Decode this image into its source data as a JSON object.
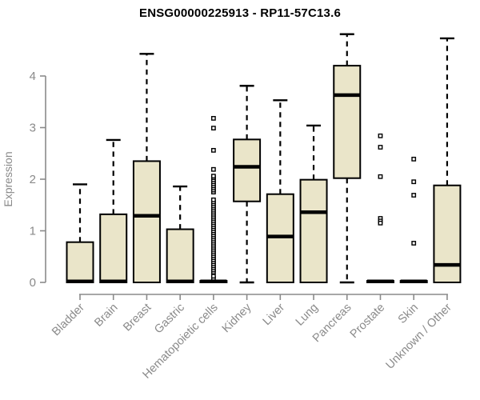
{
  "title": "ENSG00000225913 - RP11-57C13.6",
  "colors": {
    "box_fill": "#EAE5C9",
    "box_stroke": "#000000",
    "median": "#000000",
    "whisker": "#000000",
    "axis": "#8a8a8a",
    "tick_label": "#8a8a8a",
    "title": "#000000",
    "outlier_fill": "#ffffff",
    "background": "#ffffff"
  },
  "chart_data": {
    "type": "boxplot",
    "title": "ENSG00000225913 - RP11-57C13.6",
    "xlabel": "",
    "ylabel": "Expression",
    "ylim": [
      0,
      4.9
    ],
    "yticks": [
      0,
      1,
      2,
      3,
      4
    ],
    "grid": false,
    "legend": "none",
    "categories": [
      "Bladder",
      "Brain",
      "Breast",
      "Gastric",
      "Hematopoietic cells",
      "Kidney",
      "Liver",
      "Lung",
      "Pancreas",
      "Prostate",
      "Skin",
      "Unknown / Other"
    ],
    "series": [
      {
        "name": "Bladder",
        "low": 0,
        "q1": 0,
        "median": 0.02,
        "q3": 0.78,
        "high": 1.9,
        "outliers": []
      },
      {
        "name": "Brain",
        "low": 0,
        "q1": 0,
        "median": 0.02,
        "q3": 1.32,
        "high": 2.76,
        "outliers": []
      },
      {
        "name": "Breast",
        "low": 0,
        "q1": 0,
        "median": 1.29,
        "q3": 2.35,
        "high": 4.43,
        "outliers": []
      },
      {
        "name": "Gastric",
        "low": 0,
        "q1": 0,
        "median": 0.02,
        "q3": 1.03,
        "high": 1.86,
        "outliers": []
      },
      {
        "name": "Hematopoietic cells",
        "low": 0,
        "q1": 0,
        "median": 0.02,
        "q3": 0.03,
        "high": 0.03,
        "outliers": [
          0.08,
          0.12,
          0.2,
          0.24,
          0.28,
          0.32,
          0.36,
          0.4,
          0.44,
          0.48,
          0.52,
          0.56,
          0.6,
          0.64,
          0.68,
          0.72,
          0.76,
          0.8,
          0.84,
          0.88,
          0.92,
          0.96,
          1.0,
          1.04,
          1.08,
          1.12,
          1.16,
          1.2,
          1.24,
          1.28,
          1.32,
          1.36,
          1.4,
          1.44,
          1.48,
          1.52,
          1.56,
          1.6,
          1.75,
          1.79,
          1.83,
          1.87,
          1.91,
          1.95,
          1.99,
          2.03,
          2.06,
          2.19,
          2.56,
          2.99,
          3.18
        ]
      },
      {
        "name": "Kidney",
        "low": 0,
        "q1": 1.57,
        "median": 2.24,
        "q3": 2.77,
        "high": 3.81,
        "outliers": []
      },
      {
        "name": "Liver",
        "low": 0,
        "q1": 0,
        "median": 0.89,
        "q3": 1.71,
        "high": 3.53,
        "outliers": []
      },
      {
        "name": "Lung",
        "low": 0,
        "q1": 0,
        "median": 1.36,
        "q3": 1.99,
        "high": 3.04,
        "outliers": []
      },
      {
        "name": "Pancreas",
        "low": 0,
        "q1": 2.02,
        "median": 3.63,
        "q3": 4.2,
        "high": 4.81,
        "outliers": []
      },
      {
        "name": "Prostate",
        "low": 0,
        "q1": 0,
        "median": 0.02,
        "q3": 0.03,
        "high": 0.03,
        "outliers": [
          2.84,
          2.62,
          2.05,
          1.24,
          1.19,
          1.15
        ]
      },
      {
        "name": "Skin",
        "low": 0,
        "q1": 0,
        "median": 0.02,
        "q3": 0.03,
        "high": 0.03,
        "outliers": [
          2.39,
          1.95,
          1.69,
          0.76
        ]
      },
      {
        "name": "Unknown / Other",
        "low": 0,
        "q1": 0,
        "median": 0.34,
        "q3": 1.88,
        "high": 4.73,
        "outliers": []
      }
    ]
  }
}
